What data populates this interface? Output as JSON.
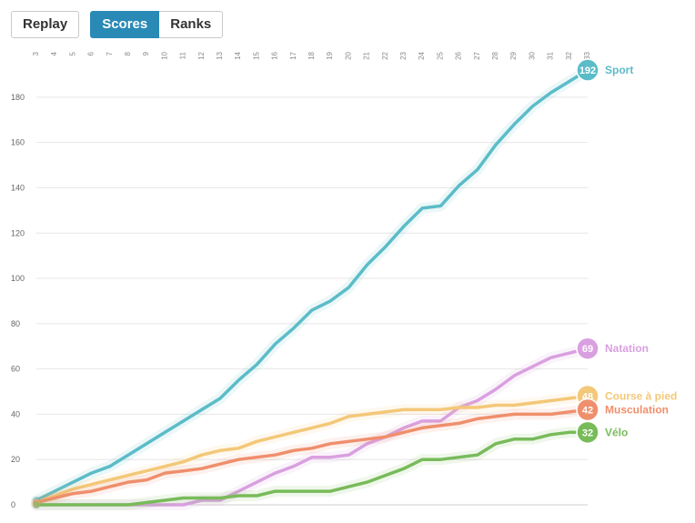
{
  "toolbar": {
    "replay_label": "Replay",
    "scores_label": "Scores",
    "ranks_label": "Ranks",
    "active_tab": "Scores"
  },
  "chart_data": {
    "type": "line",
    "title": "",
    "xlabel": "",
    "ylabel": "",
    "x": [
      3,
      4,
      5,
      6,
      7,
      8,
      9,
      10,
      11,
      12,
      13,
      14,
      15,
      16,
      17,
      18,
      19,
      20,
      21,
      22,
      23,
      24,
      25,
      26,
      27,
      28,
      29,
      30,
      31,
      32,
      33
    ],
    "x_tick_labels": [
      "3",
      "4",
      "5",
      "6",
      "7",
      "8",
      "9",
      "10",
      "11",
      "12",
      "13",
      "14",
      "15",
      "16",
      "17",
      "18",
      "19",
      "20",
      "21",
      "22",
      "23",
      "24",
      "25",
      "26",
      "27",
      "28",
      "29",
      "30",
      "31",
      "32",
      "33"
    ],
    "x_axis_position": "top",
    "ylim": [
      0,
      190
    ],
    "y_ticks": [
      0,
      20,
      40,
      60,
      80,
      100,
      120,
      140,
      160,
      180
    ],
    "grid": true,
    "legend": "end-of-line labels",
    "series": [
      {
        "name": "Sport",
        "color": "#5bbcc8",
        "end_value": "192",
        "values": [
          2,
          6,
          10,
          14,
          17,
          22,
          27,
          32,
          37,
          42,
          47,
          55,
          62,
          71,
          78,
          86,
          90,
          96,
          106,
          114,
          123,
          131,
          132,
          141,
          148,
          159,
          168,
          176,
          182,
          187,
          192
        ]
      },
      {
        "name": "Natation",
        "color": "#d9a0e0",
        "end_value": "69",
        "values": [
          0,
          0,
          0,
          0,
          0,
          0,
          0,
          0,
          0,
          2,
          2,
          6,
          10,
          14,
          17,
          21,
          21,
          22,
          27,
          30,
          34,
          37,
          37,
          43,
          46,
          51,
          57,
          61,
          65,
          67,
          69
        ]
      },
      {
        "name": "Course à pied",
        "color": "#f3c878",
        "end_value": "48",
        "values": [
          1,
          4,
          7,
          9,
          11,
          13,
          15,
          17,
          19,
          22,
          24,
          25,
          28,
          30,
          32,
          34,
          36,
          39,
          40,
          41,
          42,
          42,
          42,
          43,
          43,
          44,
          44,
          45,
          46,
          47,
          48
        ]
      },
      {
        "name": "Musculation",
        "color": "#ef8f6c",
        "end_value": "42",
        "values": [
          1,
          3,
          5,
          6,
          8,
          10,
          11,
          14,
          15,
          16,
          18,
          20,
          21,
          22,
          24,
          25,
          27,
          28,
          29,
          30,
          32,
          34,
          35,
          36,
          38,
          39,
          40,
          40,
          40,
          41,
          42
        ]
      },
      {
        "name": "Vélo",
        "color": "#78bb5a",
        "end_value": "32",
        "values": [
          0,
          0,
          0,
          0,
          0,
          0,
          1,
          2,
          3,
          3,
          3,
          4,
          4,
          6,
          6,
          6,
          6,
          8,
          10,
          13,
          16,
          20,
          20,
          21,
          22,
          27,
          29,
          29,
          31,
          32,
          32
        ]
      }
    ]
  }
}
